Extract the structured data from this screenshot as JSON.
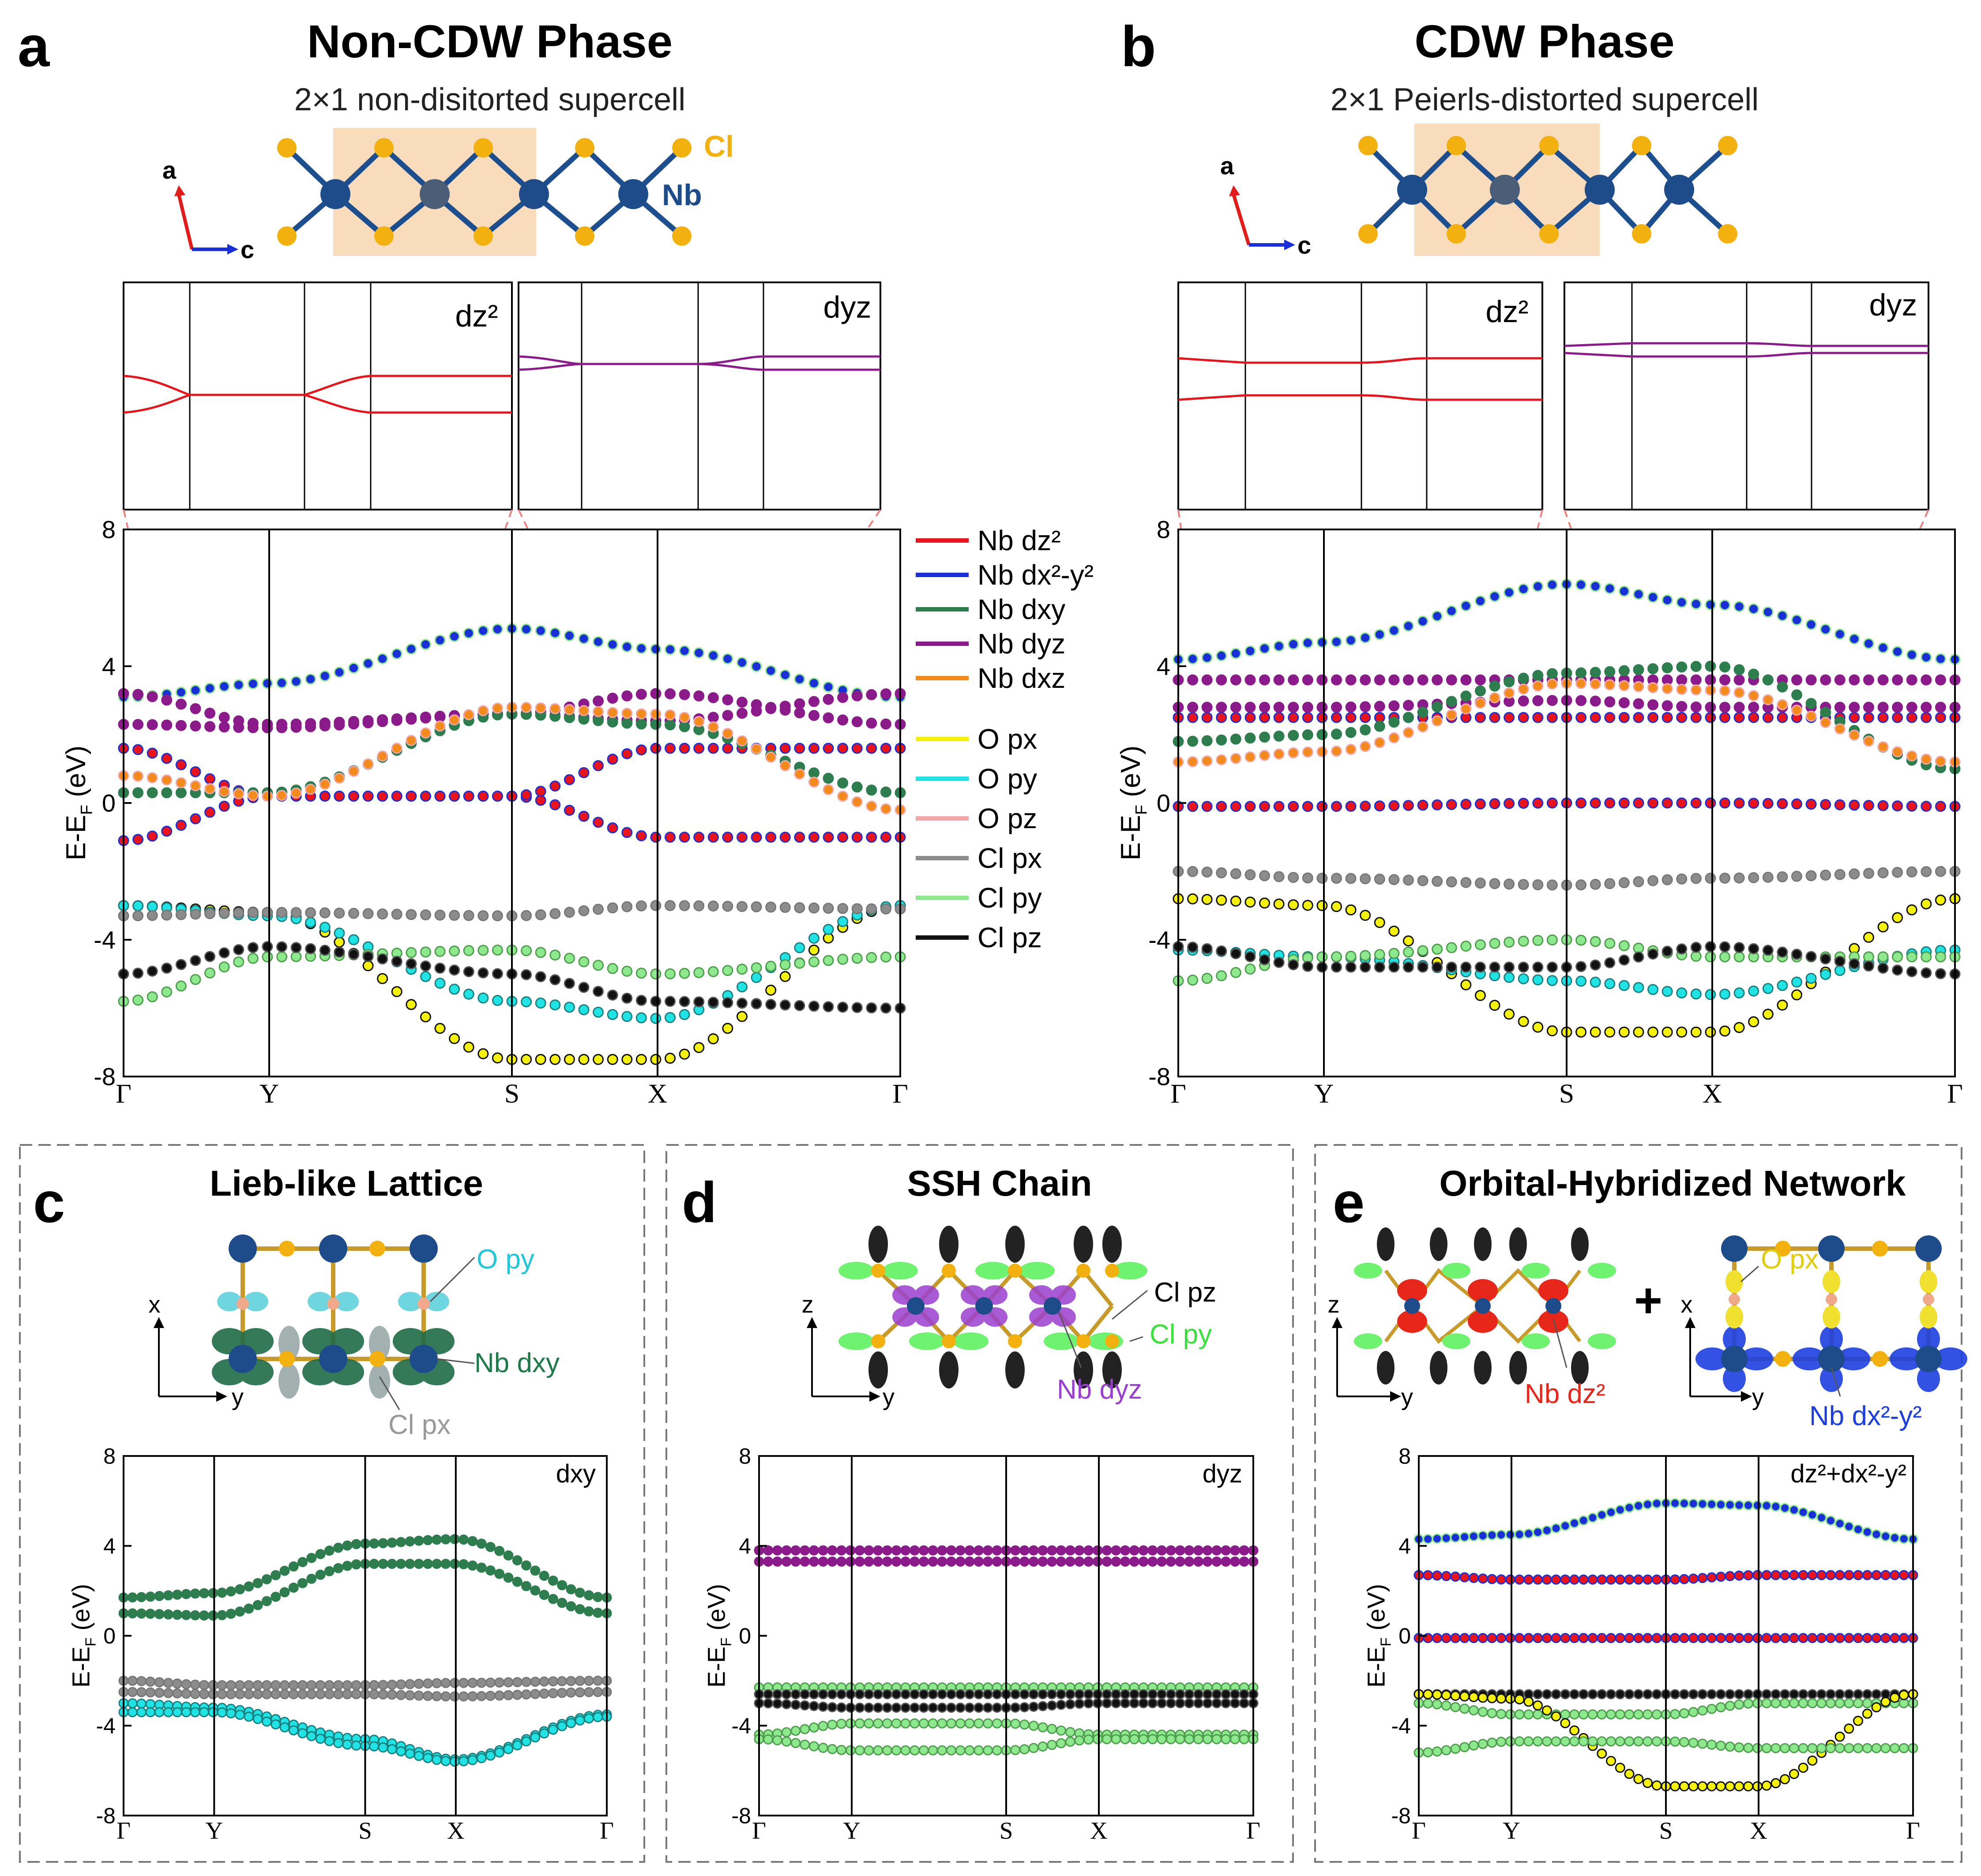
{
  "panels": {
    "a": {
      "letter": "a",
      "title": "Non-CDW Phase",
      "subtitle": "2×1 non-disitorted supercell",
      "crystal_labels": {
        "cl": "Cl",
        "nb": "Nb",
        "axis_a": "a",
        "axis_c": "c"
      },
      "inset_left": "dz²",
      "inset_right": "dyz"
    },
    "b": {
      "letter": "b",
      "title": "CDW Phase",
      "subtitle": "2×1 Peierls-distorted supercell",
      "crystal_labels": {
        "axis_a": "a",
        "axis_c": "c"
      },
      "inset_left": "dz²",
      "inset_right": "dyz"
    },
    "c": {
      "letter": "c",
      "title": "Lieb-like Lattice",
      "labels": {
        "o": "O py",
        "nb": "Nb dxy",
        "cl": "Cl px",
        "axis_x": "x",
        "axis_y": "y"
      },
      "orbital_tag": "dxy"
    },
    "d": {
      "letter": "d",
      "title": "SSH Chain",
      "labels": {
        "clpz": "Cl pz",
        "clpy": "Cl py",
        "nb": "Nb dyz",
        "axis_z": "z",
        "axis_y": "y"
      },
      "orbital_tag": "dyz"
    },
    "e": {
      "letter": "e",
      "title": "Orbital-Hybridized Network",
      "labels": {
        "nbdz2": "Nb dz²",
        "opx": "O px",
        "nbdx2": "Nb dx²-y²",
        "plus": "+",
        "axis_z": "z",
        "axis_y": "y",
        "axis_x": "x",
        "axis_y2": "y"
      },
      "orbital_tag": "dz²+dx²-y²"
    }
  },
  "legend": [
    {
      "label": "Nb dz²",
      "color": "#e8141b"
    },
    {
      "label": "Nb dx²-y²",
      "color": "#1a2fd6"
    },
    {
      "label": "Nb dxy",
      "color": "#2e7d4f"
    },
    {
      "label": "Nb dyz",
      "color": "#8b1a8b"
    },
    {
      "label": "Nb dxz",
      "color": "#f28a1c"
    },
    {
      "label": "O px",
      "color": "#f4f20c"
    },
    {
      "label": "O py",
      "color": "#22e3e3"
    },
    {
      "label": "O pz",
      "color": "#f2a8a8"
    },
    {
      "label": "Cl px",
      "color": "#8c8c8c"
    },
    {
      "label": "Cl py",
      "color": "#8ee88e"
    },
    {
      "label": "Cl pz",
      "color": "#111111"
    }
  ],
  "axis": {
    "ylabel": "E-E",
    "ylabel_sub": "F",
    "ylabel_unit": "(eV)",
    "yticks": [
      8,
      4,
      0,
      -4,
      -8
    ],
    "kpoints": [
      "Γ",
      "Y",
      "S",
      "X",
      "Γ"
    ]
  },
  "chart_data": [
    {
      "type": "line",
      "title": "Non-CDW Phase band structure",
      "ylabel": "E-E_F (eV)",
      "ylim": [
        -8,
        8
      ],
      "x": [
        "Γ",
        "Y",
        "S",
        "X",
        "Γ"
      ],
      "series": [
        {
          "name": "Nb dz²",
          "values": [
            -1.1,
            0.2,
            0.2,
            -1.0,
            -1.0
          ]
        },
        {
          "name": "Nb dz²",
          "values": [
            1.6,
            0.2,
            0.2,
            1.6,
            1.6
          ]
        },
        {
          "name": "Nb dx²-y²",
          "values": [
            3.1,
            3.5,
            5.1,
            4.5,
            3.1
          ]
        },
        {
          "name": "Nb dyz",
          "values": [
            2.3,
            2.2,
            2.6,
            3.2,
            2.3
          ]
        },
        {
          "name": "Nb dyz",
          "values": [
            3.2,
            2.3,
            2.6,
            2.4,
            3.2
          ]
        },
        {
          "name": "Nb dxy",
          "values": [
            0.3,
            0.3,
            2.6,
            2.3,
            0.3
          ]
        },
        {
          "name": "Nb dxz",
          "values": [
            0.8,
            0.2,
            2.8,
            2.6,
            -0.2
          ]
        },
        {
          "name": "O px",
          "values": [
            -3.0,
            -3.2,
            -7.5,
            -7.5,
            -3.0
          ]
        },
        {
          "name": "O py",
          "values": [
            -3.0,
            -3.3,
            -5.8,
            -6.3,
            -3.0
          ]
        },
        {
          "name": "Cl px",
          "values": [
            -3.3,
            -3.2,
            -3.3,
            -3.0,
            -3.1
          ]
        },
        {
          "name": "Cl py",
          "values": [
            -5.8,
            -4.5,
            -4.3,
            -5.0,
            -4.5
          ]
        },
        {
          "name": "Cl pz",
          "values": [
            -5.0,
            -4.2,
            -5.0,
            -5.8,
            -6.0
          ]
        }
      ]
    },
    {
      "type": "line",
      "title": "CDW Phase band structure",
      "ylabel": "E-E_F (eV)",
      "ylim": [
        -8,
        8
      ],
      "x": [
        "Γ",
        "Y",
        "S",
        "X",
        "Γ"
      ],
      "series": [
        {
          "name": "Nb dz²",
          "values": [
            -0.1,
            -0.1,
            0.0,
            0.0,
            -0.1
          ]
        },
        {
          "name": "Nb dz²",
          "values": [
            2.5,
            2.5,
            2.5,
            2.5,
            2.5
          ]
        },
        {
          "name": "Nb dx²-y²",
          "values": [
            4.2,
            4.7,
            6.4,
            5.8,
            4.2
          ]
        },
        {
          "name": "Nb dyz",
          "values": [
            2.8,
            2.8,
            3.0,
            2.8,
            2.8
          ]
        },
        {
          "name": "Nb dyz",
          "values": [
            3.6,
            3.6,
            3.6,
            3.6,
            3.6
          ]
        },
        {
          "name": "Nb dxy",
          "values": [
            1.8,
            2.0,
            3.8,
            4.0,
            1.0
          ]
        },
        {
          "name": "Nb dxz",
          "values": [
            1.2,
            1.5,
            3.5,
            3.3,
            1.2
          ]
        },
        {
          "name": "O px",
          "values": [
            -2.8,
            -3.0,
            -6.7,
            -6.7,
            -2.8
          ]
        },
        {
          "name": "O py",
          "values": [
            -4.3,
            -4.5,
            -5.2,
            -5.6,
            -4.3
          ]
        },
        {
          "name": "Cl px",
          "values": [
            -2.0,
            -2.2,
            -2.4,
            -2.2,
            -2.0
          ]
        },
        {
          "name": "Cl py",
          "values": [
            -5.2,
            -4.5,
            -4.0,
            -4.5,
            -4.5
          ]
        },
        {
          "name": "Cl pz",
          "values": [
            -4.2,
            -4.8,
            -4.8,
            -4.2,
            -5.0
          ]
        }
      ]
    },
    {
      "type": "line",
      "title": "Lieb-like Lattice (dxy)",
      "ylabel": "E-E_F (eV)",
      "ylim": [
        -8,
        8
      ],
      "x": [
        "Γ",
        "Y",
        "S",
        "X",
        "Γ"
      ],
      "series": [
        {
          "name": "Nb dxy",
          "values": [
            1.7,
            1.9,
            4.1,
            4.3,
            1.7
          ]
        },
        {
          "name": "Nb dxy",
          "values": [
            1.0,
            0.9,
            3.2,
            3.2,
            1.0
          ]
        },
        {
          "name": "Cl px",
          "values": [
            -2.0,
            -2.2,
            -2.2,
            -2.1,
            -2.0
          ]
        },
        {
          "name": "Cl px",
          "values": [
            -2.5,
            -2.6,
            -2.6,
            -2.7,
            -2.5
          ]
        },
        {
          "name": "O py",
          "values": [
            -3.0,
            -3.2,
            -4.6,
            -5.5,
            -3.5
          ]
        },
        {
          "name": "O py",
          "values": [
            -3.4,
            -3.4,
            -4.9,
            -5.6,
            -3.6
          ]
        }
      ]
    },
    {
      "type": "line",
      "title": "SSH Chain (dyz)",
      "ylabel": "E-E_F (eV)",
      "ylim": [
        -8,
        8
      ],
      "x": [
        "Γ",
        "Y",
        "S",
        "X",
        "Γ"
      ],
      "series": [
        {
          "name": "Nb dyz",
          "values": [
            3.8,
            3.8,
            3.8,
            3.8,
            3.8
          ]
        },
        {
          "name": "Nb dyz",
          "values": [
            3.3,
            3.3,
            3.3,
            3.3,
            3.3
          ]
        },
        {
          "name": "Cl py",
          "values": [
            -2.3,
            -2.3,
            -2.3,
            -2.3,
            -2.3
          ]
        },
        {
          "name": "Cl pz",
          "values": [
            -2.6,
            -2.6,
            -2.6,
            -2.6,
            -2.6
          ]
        },
        {
          "name": "Cl pz",
          "values": [
            -3.0,
            -3.2,
            -3.2,
            -3.0,
            -3.0
          ]
        },
        {
          "name": "Cl py",
          "values": [
            -4.4,
            -3.9,
            -3.9,
            -4.4,
            -4.4
          ]
        },
        {
          "name": "Cl py",
          "values": [
            -4.6,
            -5.1,
            -5.1,
            -4.6,
            -4.6
          ]
        }
      ]
    },
    {
      "type": "line",
      "title": "Orbital-Hybridized Network (dz²+dx²-y²)",
      "ylabel": "E-E_F (eV)",
      "ylim": [
        -8,
        8
      ],
      "x": [
        "Γ",
        "Y",
        "S",
        "X",
        "Γ"
      ],
      "series": [
        {
          "name": "Nb dx²-y²",
          "values": [
            4.3,
            4.5,
            5.9,
            5.8,
            4.3
          ]
        },
        {
          "name": "Nb dz²",
          "values": [
            2.7,
            2.5,
            2.5,
            2.7,
            2.7
          ]
        },
        {
          "name": "Nb dz²",
          "values": [
            -0.1,
            -0.1,
            -0.1,
            -0.1,
            -0.1
          ]
        },
        {
          "name": "Cl pz",
          "values": [
            -2.6,
            -2.6,
            -2.6,
            -2.6,
            -2.6
          ]
        },
        {
          "name": "Cl py",
          "values": [
            -3.0,
            -3.5,
            -3.5,
            -3.0,
            -3.0
          ]
        },
        {
          "name": "O px",
          "values": [
            -2.6,
            -2.8,
            -6.7,
            -6.7,
            -2.6
          ]
        },
        {
          "name": "Cl py",
          "values": [
            -5.2,
            -4.7,
            -4.7,
            -5.0,
            -5.0
          ]
        }
      ]
    }
  ]
}
